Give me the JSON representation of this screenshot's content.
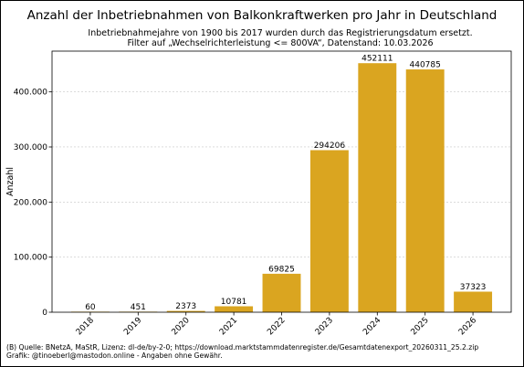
{
  "chart_data": {
    "type": "bar",
    "title": "Anzahl der Inbetriebnahmen von Balkonkraftwerken pro Jahr in Deutschland",
    "subtitle_lines": [
      "Inbetriebnahmejahre von 1900 bis 2017 wurden durch das Registrierungsdatum ersetzt.",
      "Filter auf „Wechselrichterleistung <= 800VA“, Datenstand: 10.03.2026"
    ],
    "xlabel": "",
    "ylabel": "Anzahl",
    "categories": [
      "2018",
      "2019",
      "2020",
      "2021",
      "2022",
      "2023",
      "2024",
      "2025",
      "2026"
    ],
    "values": [
      60,
      451,
      2373,
      10781,
      69825,
      294206,
      452111,
      440785,
      37323
    ],
    "data_labels": [
      "60",
      "451",
      "2373",
      "10781",
      "69825",
      "294206",
      "452111",
      "440785",
      "37323"
    ],
    "ylim": [
      0,
      474000
    ],
    "yticks": [
      0,
      100000,
      200000,
      300000,
      400000
    ],
    "ytick_labels": [
      "0",
      "100.000",
      "200.000",
      "300.000",
      "400.000"
    ],
    "grid": true,
    "bar_color": "#daa520",
    "footer_lines": [
      "(B) Quelle: BNetzA, MaStR, Lizenz: dl-de/by-2-0; https://download.marktstammdatenregister.de/Gesamtdatenexport_20260311_25.2.zip",
      "Grafik: @tinoeberl@mastodon.online - Angaben ohne Gewähr."
    ]
  }
}
